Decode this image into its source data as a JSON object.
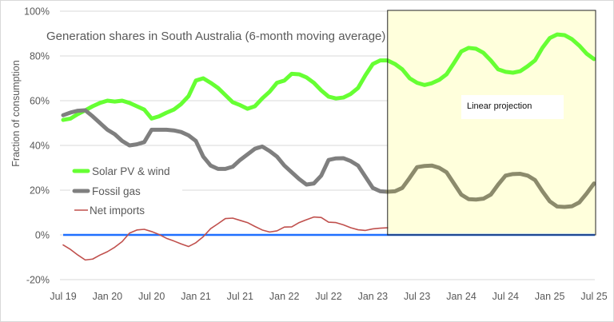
{
  "chart_data": {
    "type": "line",
    "title": "Generation shares in South Australia (6-month moving average)",
    "xlabel": "",
    "ylabel": "Fraction of consumption",
    "ylim": [
      -20,
      100
    ],
    "yticks": [
      "-20%",
      "0%",
      "20%",
      "40%",
      "60%",
      "80%",
      "100%"
    ],
    "ytick_values": [
      -20,
      0,
      20,
      40,
      60,
      80,
      100
    ],
    "xticks": [
      "Jul 19",
      "Jan 20",
      "Jul 20",
      "Jan 21",
      "Jul 21",
      "Jan 22",
      "Jul 22",
      "Jan 23",
      "Jul 23",
      "Jan 24",
      "Jul 24",
      "Jan 25",
      "Jul 25"
    ],
    "x_start": "2019-07",
    "x_frequency": "monthly",
    "grid": "horizontal",
    "legend_placement": "left-middle",
    "annotation": {
      "label": "Linear projection",
      "from": "2023-03",
      "to": "2025-07",
      "fill": "#ffffdc"
    },
    "zero_line_color": "#1f6fff",
    "series": [
      {
        "name": "Solar PV & wind",
        "color": "#66ff33",
        "values": [
          51.4,
          52,
          54,
          55.7,
          57.5,
          59,
          60,
          59.6,
          60,
          59,
          57.5,
          56,
          52,
          53,
          54.6,
          56,
          58.5,
          62,
          69,
          70,
          68,
          65.7,
          62.5,
          59.3,
          58,
          56.4,
          57.5,
          61,
          64,
          68,
          69,
          72,
          71.8,
          70.4,
          68,
          64.6,
          61.8,
          61,
          61.4,
          63,
          65.7,
          71.4,
          76.4,
          78,
          78,
          76.4,
          74,
          70,
          68,
          67,
          67.8,
          69.3,
          71.8,
          76.8,
          82,
          83.6,
          83.2,
          81.4,
          78,
          74,
          72.9,
          72.5,
          73.2,
          75.4,
          78,
          83.6,
          88,
          89.6,
          89.3,
          87.5,
          84.6,
          81,
          78.6
        ]
      },
      {
        "name": "Fossil gas",
        "color": "#7f7f7f",
        "projection_color": "#8c8b6c",
        "values": [
          53.5,
          54.7,
          55.5,
          55.7,
          53,
          50,
          47,
          45,
          42,
          40,
          40.5,
          41.5,
          47,
          47,
          47,
          46.7,
          46,
          44.5,
          42,
          35,
          31,
          29.5,
          29.5,
          30.5,
          33.5,
          36,
          38.5,
          39.5,
          37.5,
          35,
          31,
          28,
          25,
          22.5,
          23,
          26.5,
          33.5,
          34.2,
          34.3,
          33,
          31,
          26,
          21,
          19.5,
          19.3,
          19.5,
          21,
          25.5,
          30.3,
          30.8,
          31,
          30,
          28,
          23,
          18,
          16,
          15.8,
          16.2,
          18,
          22.5,
          26.5,
          27.2,
          27.3,
          26.5,
          24.5,
          19.5,
          15,
          12.7,
          12.5,
          12.8,
          14.5,
          18.5,
          23
        ]
      },
      {
        "name": "Net imports",
        "color": "#c0504d",
        "values": [
          -4.5,
          -6.5,
          -9,
          -11.2,
          -10.8,
          -9,
          -7.5,
          -5.5,
          -3,
          0.8,
          2.2,
          2.5,
          1.5,
          0.2,
          -1.5,
          -2.7,
          -4,
          -5.2,
          -3.5,
          -0.8,
          2.8,
          5,
          7.3,
          7.5,
          6.5,
          5.5,
          3.8,
          2.2,
          1.3,
          1.8,
          3.5,
          3.6,
          5.5,
          6.8,
          8,
          7.8,
          5.7,
          5.5,
          4.5,
          3.2,
          2.3,
          2,
          2.7,
          3,
          3.2
        ]
      }
    ]
  }
}
